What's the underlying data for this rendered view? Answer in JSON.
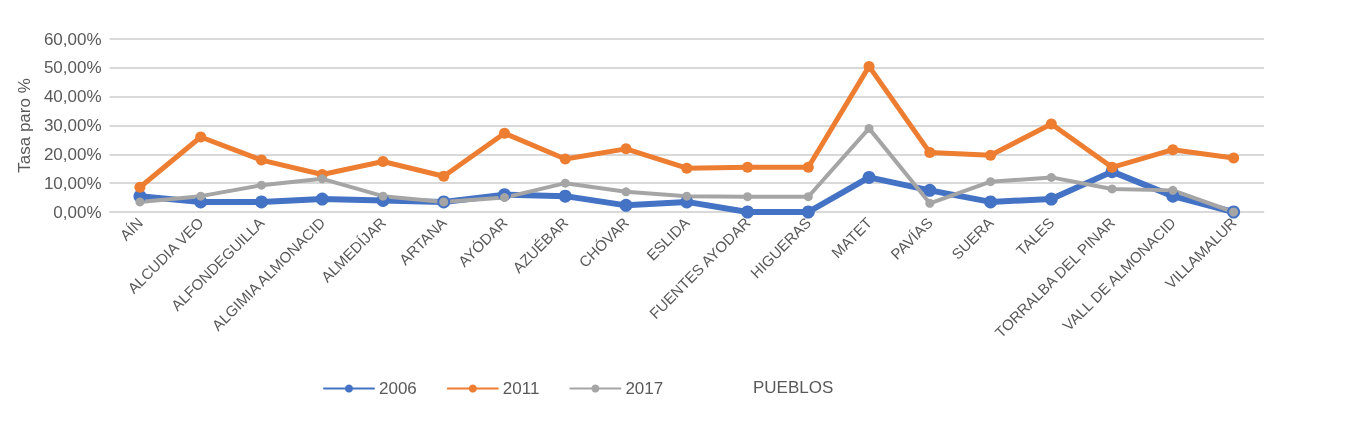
{
  "chart_data": {
    "type": "line",
    "xlabel": "PUEBLOS",
    "ylabel": "Tasa paro %",
    "categories": [
      "AÍN",
      "ALCUDIA VEO",
      "ALFONDEGUILLA",
      "ALGIMIA ALMONACID",
      "ALMEDÍJAR",
      "ARTANA",
      "AYÓDAR",
      "AZUÉBAR",
      "CHÓVAR",
      "ESLIDA",
      "FUENTES AYODAR",
      "HIGUERAS",
      "MATET",
      "PAVÍAS",
      "SUERA",
      "TALES",
      "TORRALBA DEL PINAR",
      "VALL DE ALMONACID",
      "VILLAMALUR"
    ],
    "series": [
      {
        "name": "2006",
        "color": "#4472c4",
        "values": [
          5.5,
          3.5,
          3.5,
          4.5,
          4,
          3.5,
          6,
          5.5,
          2.3,
          3.5,
          0,
          0,
          12,
          7.5,
          3.5,
          4.5,
          14,
          5.5,
          0
        ]
      },
      {
        "name": "2011",
        "color": "#ed7d31",
        "values": [
          8.6,
          26,
          18,
          13,
          17.5,
          12.4,
          27.3,
          18.4,
          21.9,
          15.2,
          15.5,
          15.5,
          50.5,
          20.6,
          19.7,
          30.5,
          15.5,
          21.6,
          18.7
        ]
      },
      {
        "name": "2017",
        "color": "#a5a5a5",
        "values": [
          3.5,
          5.5,
          9.3,
          11.5,
          5.5,
          3.5,
          5,
          10,
          7,
          5.5,
          5.3,
          5.3,
          29,
          3,
          10.5,
          12,
          8,
          7.5,
          0
        ]
      }
    ],
    "ylim": [
      0,
      60
    ],
    "yticks": [
      {
        "value": 0,
        "label": "0,00%"
      },
      {
        "value": 10,
        "label": "10,00%"
      },
      {
        "value": 20,
        "label": "20,00%"
      },
      {
        "value": 30,
        "label": "30,00%"
      },
      {
        "value": 40,
        "label": "40,00%"
      },
      {
        "value": 50,
        "label": "50,00%"
      },
      {
        "value": 60,
        "label": "60,00%"
      }
    ],
    "grid": "y",
    "legend": "bottom",
    "marker": "circle",
    "line_style": "solid"
  }
}
